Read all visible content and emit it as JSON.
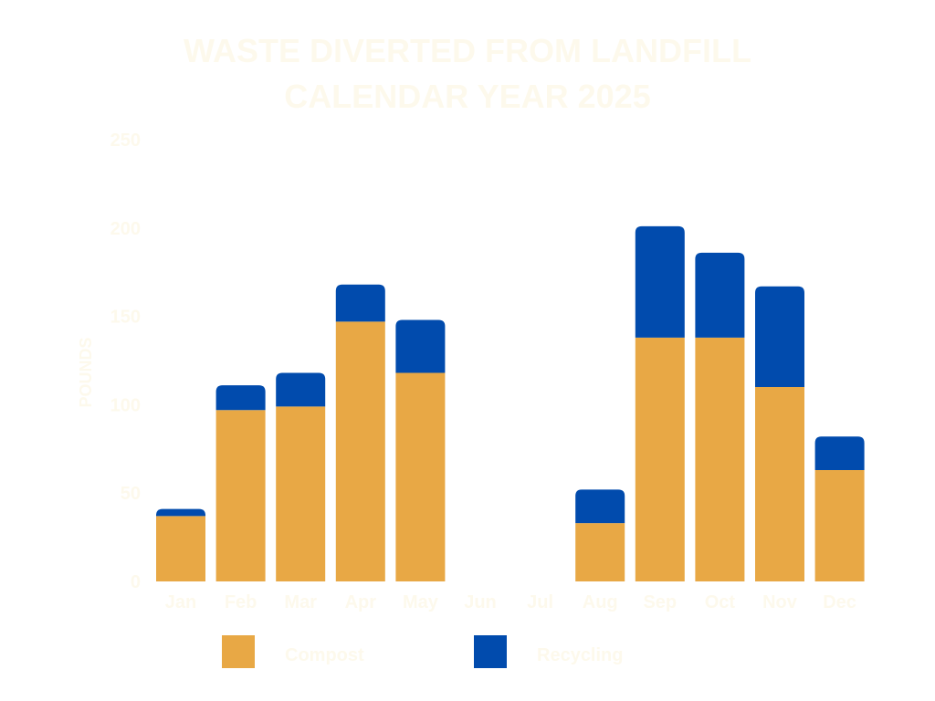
{
  "colors": {
    "background": "#ffffff",
    "text": "#fdf9ec",
    "compost": "#e8a845",
    "recycling": "#014bad"
  },
  "chart_data": {
    "type": "bar",
    "stacked": true,
    "title": [
      "WASTE DIVERTED FROM LANDFILL",
      "CALENDAR YEAR 2025"
    ],
    "xlabel": "",
    "ylabel": "POUNDS",
    "ylim": [
      0,
      250
    ],
    "yticks": [
      0,
      50,
      100,
      150,
      200,
      250
    ],
    "grid": false,
    "legend_position": "bottom",
    "categories": [
      "Jan",
      "Feb",
      "Mar",
      "Apr",
      "May",
      "Jun",
      "Jul",
      "Aug",
      "Sep",
      "Oct",
      "Nov",
      "Dec"
    ],
    "series": [
      {
        "name": "Compost",
        "color": "#e8a845",
        "values": [
          37,
          97,
          99,
          147,
          118,
          0,
          0,
          33,
          138,
          138,
          110,
          63
        ]
      },
      {
        "name": "Recycling",
        "color": "#014bad",
        "values": [
          4,
          14,
          19,
          21,
          30,
          0,
          0,
          19,
          63,
          48,
          57,
          19
        ]
      }
    ]
  }
}
